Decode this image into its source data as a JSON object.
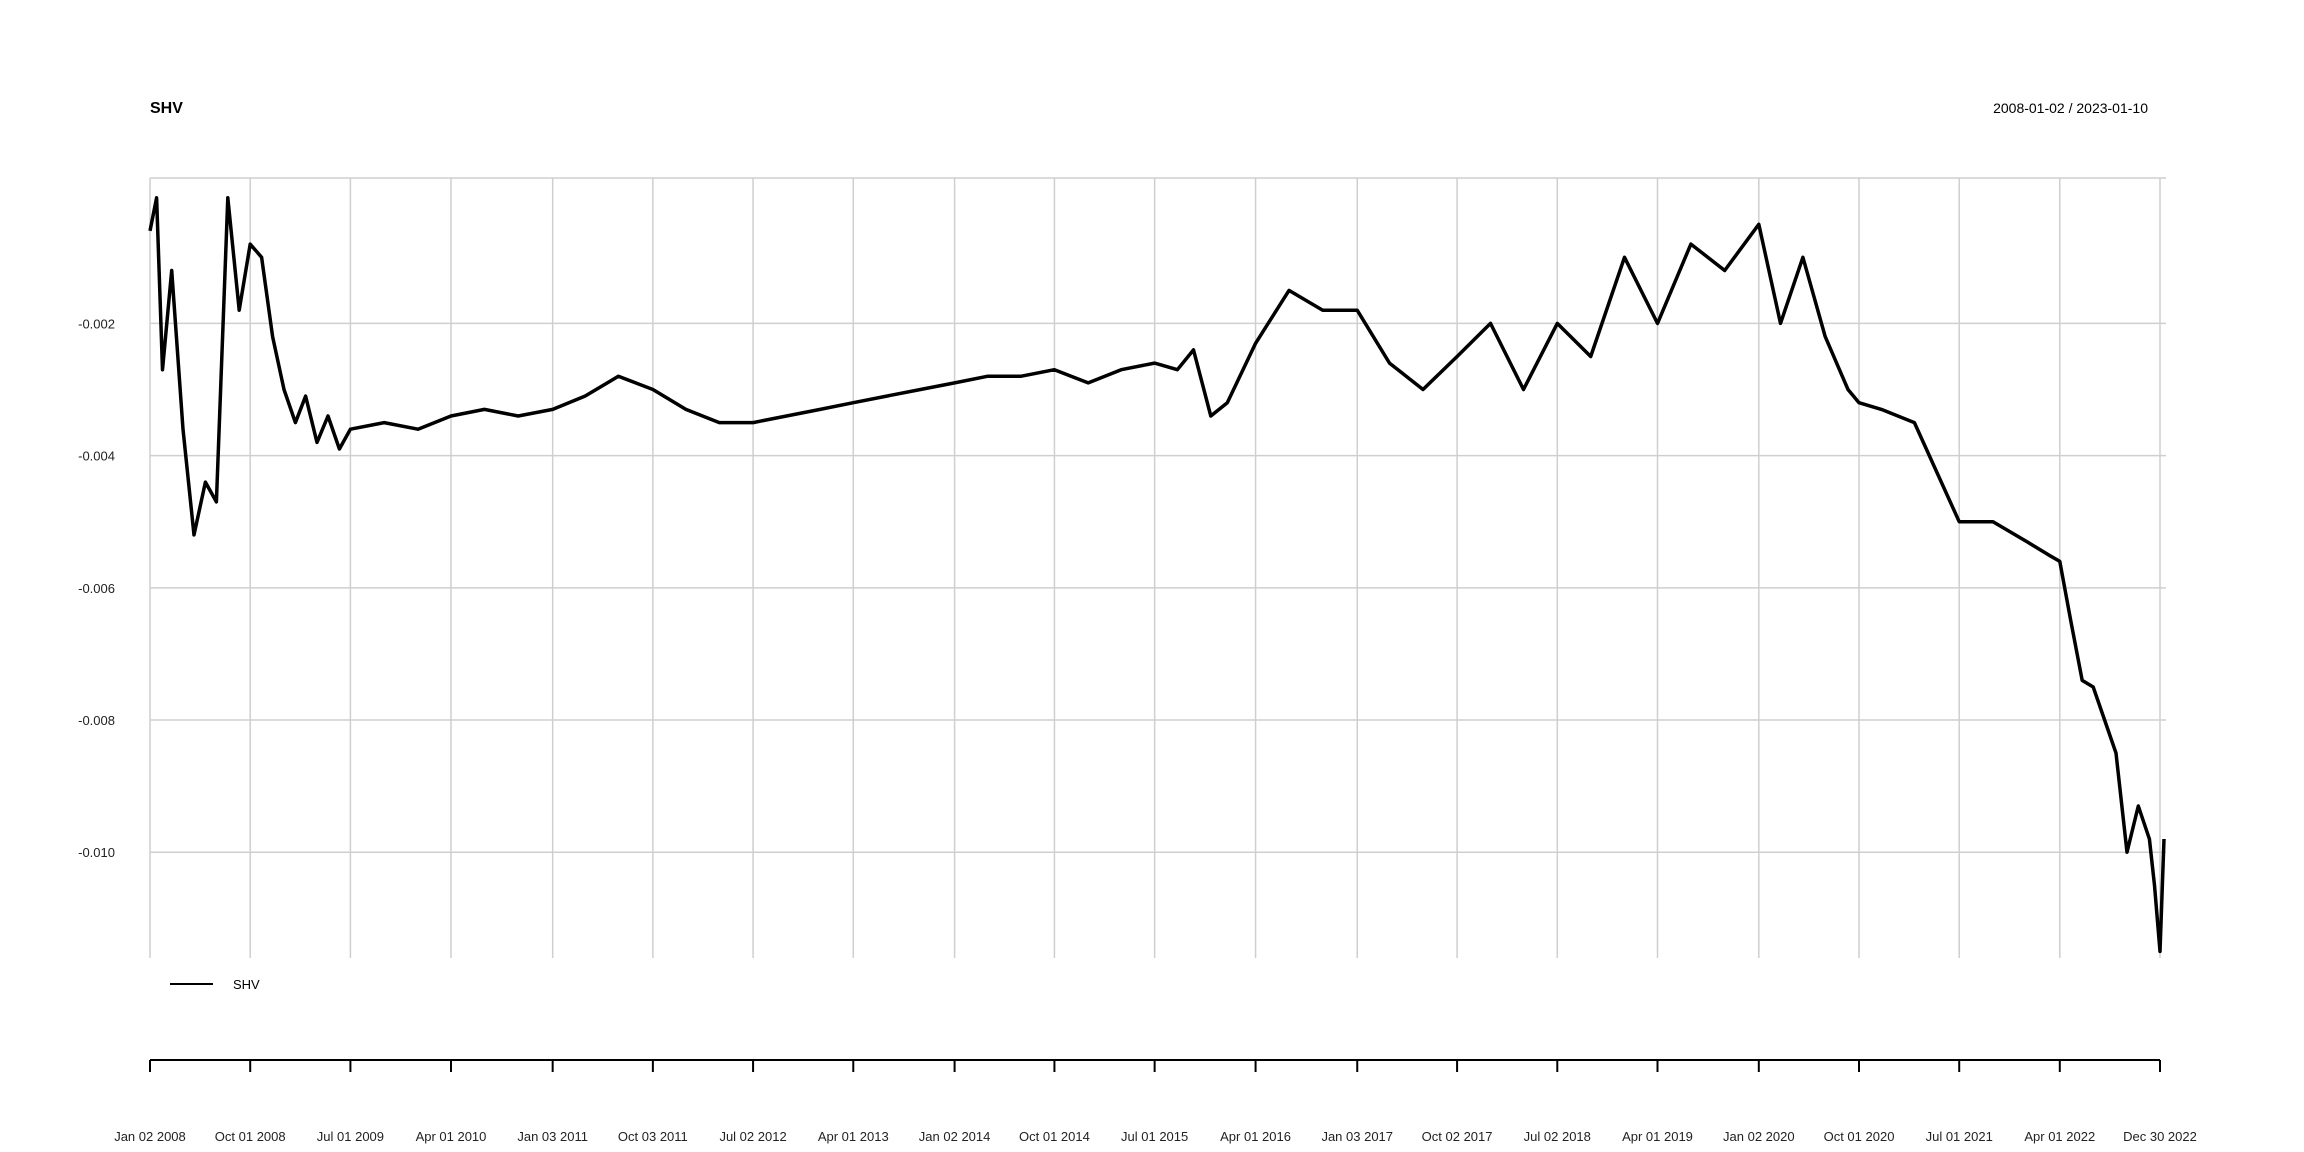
{
  "chart_data": {
    "type": "line",
    "title": "SHV",
    "date_range": "2008-01-02 / 2023-01-10",
    "legend": "bottom-left",
    "grid": true,
    "ylim": [
      -0.0116,
      0.0002
    ],
    "y_ticks": [
      "-0.002",
      "-0.004",
      "-0.006",
      "-0.008",
      "-0.010"
    ],
    "y_tick_values": [
      -0.002,
      -0.004,
      -0.006,
      -0.008,
      -0.01
    ],
    "x_ticks": [
      "Jan 02 2008",
      "Oct 01 2008",
      "Jul 01 2009",
      "Apr 01 2010",
      "Jan 03 2011",
      "Oct 03 2011",
      "Jul 02 2012",
      "Apr 01 2013",
      "Jan 02 2014",
      "Oct 01 2014",
      "Jul 01 2015",
      "Apr 01 2016",
      "Jan 03 2017",
      "Oct 02 2017",
      "Jul 02 2018",
      "Apr 01 2019",
      "Jan 02 2020",
      "Oct 01 2020",
      "Jul 01 2021",
      "Apr 01 2022",
      "Dec 30 2022"
    ],
    "series": [
      {
        "name": "SHV",
        "x": [
          "2008-01-02",
          "2008-01-20",
          "2008-02-05",
          "2008-03-01",
          "2008-04-01",
          "2008-05-01",
          "2008-06-01",
          "2008-07-01",
          "2008-08-01",
          "2008-09-01",
          "2008-10-01",
          "2008-11-01",
          "2008-12-01",
          "2009-01-01",
          "2009-02-01",
          "2009-03-01",
          "2009-04-01",
          "2009-05-01",
          "2009-06-01",
          "2009-07-01",
          "2009-10-01",
          "2010-01-01",
          "2010-04-01",
          "2010-07-01",
          "2010-10-01",
          "2011-01-03",
          "2011-04-01",
          "2011-07-01",
          "2011-10-03",
          "2012-01-01",
          "2012-04-01",
          "2012-07-02",
          "2012-10-01",
          "2013-01-01",
          "2013-04-01",
          "2013-07-01",
          "2013-10-01",
          "2014-01-02",
          "2014-04-01",
          "2014-07-01",
          "2014-10-01",
          "2015-01-01",
          "2015-04-01",
          "2015-07-01",
          "2015-09-01",
          "2015-10-15",
          "2015-12-01",
          "2016-01-15",
          "2016-04-01",
          "2016-07-01",
          "2016-10-01",
          "2017-01-03",
          "2017-04-01",
          "2017-07-01",
          "2017-10-02",
          "2018-01-01",
          "2018-04-01",
          "2018-07-02",
          "2018-10-01",
          "2019-01-01",
          "2019-04-01",
          "2019-07-01",
          "2019-10-01",
          "2020-01-02",
          "2020-03-01",
          "2020-05-01",
          "2020-07-01",
          "2020-09-01",
          "2020-10-01",
          "2020-12-01",
          "2021-03-01",
          "2021-07-01",
          "2021-10-01",
          "2022-01-01",
          "2022-03-01",
          "2022-04-01",
          "2022-05-01",
          "2022-06-01",
          "2022-07-01",
          "2022-08-01",
          "2022-09-01",
          "2022-10-01",
          "2022-11-01",
          "2022-12-01",
          "2022-12-15",
          "2022-12-30",
          "2023-01-10"
        ],
        "values": [
          -0.0006,
          -0.0001,
          -0.0027,
          -0.0012,
          -0.0036,
          -0.0052,
          -0.0044,
          -0.0047,
          -0.0001,
          -0.0018,
          -0.0008,
          -0.001,
          -0.0022,
          -0.003,
          -0.0035,
          -0.0031,
          -0.0038,
          -0.0034,
          -0.0039,
          -0.0036,
          -0.0035,
          -0.0036,
          -0.0034,
          -0.0033,
          -0.0034,
          -0.0033,
          -0.0031,
          -0.0028,
          -0.003,
          -0.0033,
          -0.0035,
          -0.0035,
          -0.0034,
          -0.0033,
          -0.0032,
          -0.0031,
          -0.003,
          -0.0029,
          -0.0028,
          -0.0028,
          -0.0027,
          -0.0029,
          -0.0027,
          -0.0026,
          -0.0027,
          -0.0024,
          -0.0034,
          -0.0032,
          -0.0023,
          -0.0015,
          -0.0018,
          -0.0018,
          -0.0026,
          -0.003,
          -0.0025,
          -0.002,
          -0.003,
          -0.002,
          -0.0025,
          -0.001,
          -0.002,
          -0.0008,
          -0.0012,
          -0.0005,
          -0.002,
          -0.001,
          -0.0022,
          -0.003,
          -0.0032,
          -0.0033,
          -0.0035,
          -0.005,
          -0.005,
          -0.0053,
          -0.0055,
          -0.0056,
          -0.0065,
          -0.0074,
          -0.0075,
          -0.008,
          -0.0085,
          -0.01,
          -0.0093,
          -0.0098,
          -0.0105,
          -0.0115,
          -0.0098
        ]
      }
    ]
  }
}
